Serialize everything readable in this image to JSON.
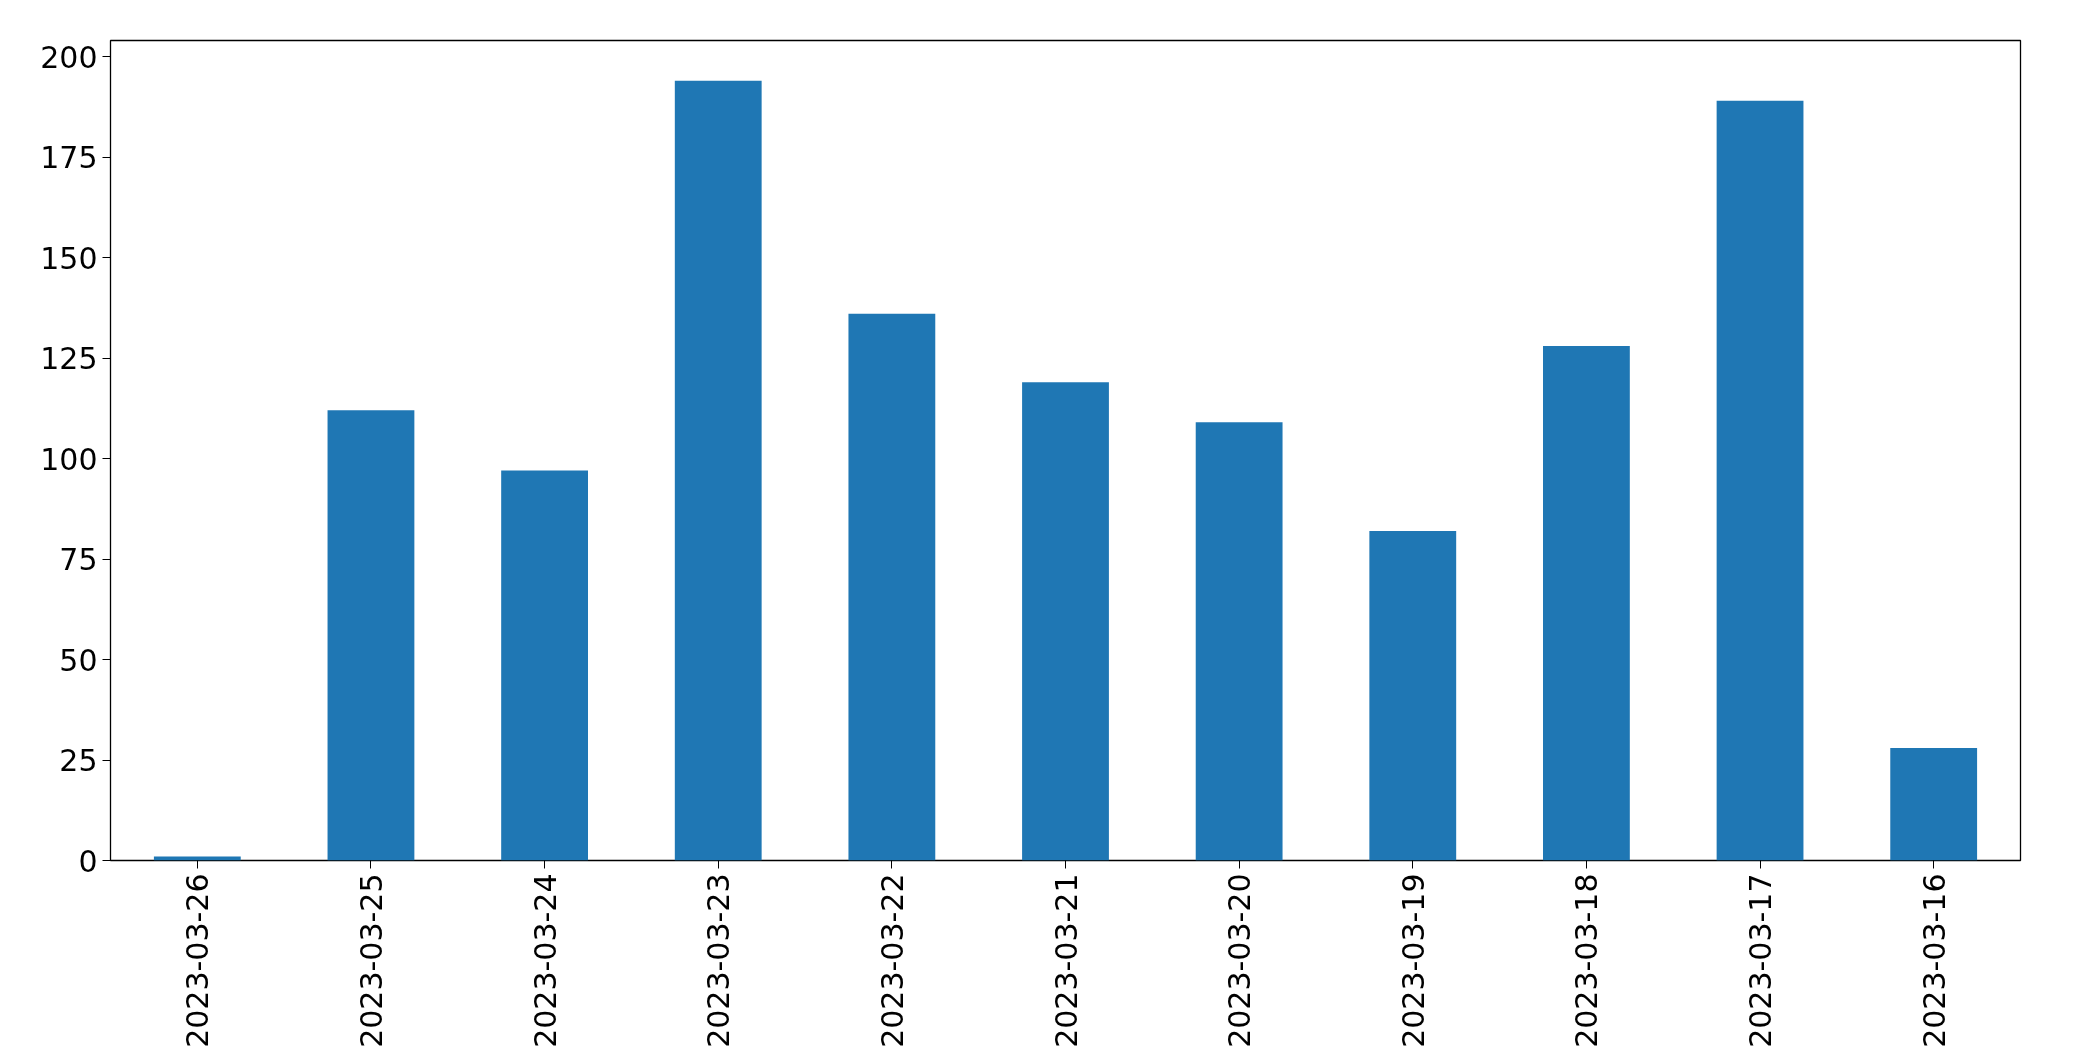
{
  "chart_data": {
    "type": "bar",
    "categories": [
      "2023-03-26",
      "2023-03-25",
      "2023-03-24",
      "2023-03-23",
      "2023-03-22",
      "2023-03-21",
      "2023-03-20",
      "2023-03-19",
      "2023-03-18",
      "2023-03-17",
      "2023-03-16"
    ],
    "values": [
      1,
      112,
      97,
      194,
      136,
      119,
      109,
      82,
      128,
      189,
      28
    ],
    "color": "#1f77b4",
    "ylim": [
      0,
      204
    ],
    "yticks": [
      0,
      25,
      50,
      75,
      100,
      125,
      150,
      175,
      200
    ],
    "grid": false
  }
}
